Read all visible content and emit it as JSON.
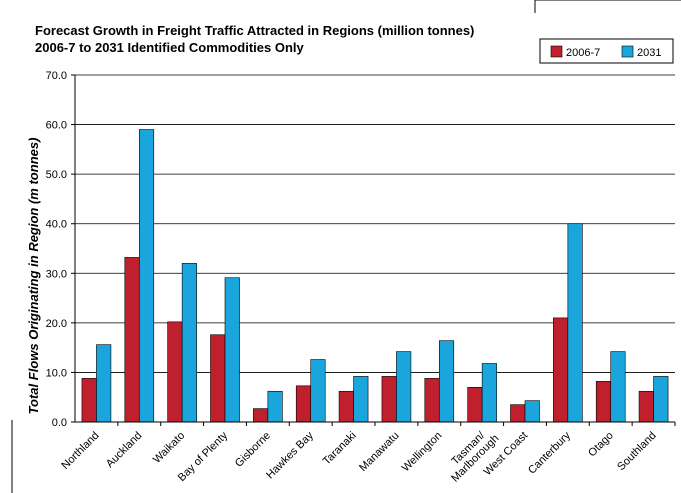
{
  "chart_data": {
    "type": "bar",
    "title": "Forecast Growth in Freight Traffic Attracted in Regions (million tonnes)",
    "subtitle": "2006-7 to 2031  Identified Commodities Only",
    "ylabel": "Total Flows Originating in Region (m tonnes)",
    "xlabel": "",
    "ylim": [
      0,
      70
    ],
    "yticks": [
      "0.0",
      "10.0",
      "20.0",
      "30.0",
      "40.0",
      "50.0",
      "60.0",
      "70.0"
    ],
    "grid": true,
    "legend_position": "top-right",
    "categories": [
      "Northland",
      "Auckland",
      "Waikato",
      "Bay of Plenty",
      "Gisborne",
      "Hawkes Bay",
      "Taranaki",
      "Manawatu",
      "Wellington",
      "Tasman/ Marlborough",
      "West Coast",
      "Canterbury",
      "Otago",
      "Southland"
    ],
    "series": [
      {
        "name": "2006-7",
        "color": "#c0202e",
        "values": [
          8.8,
          33.2,
          20.2,
          17.6,
          2.7,
          7.3,
          6.2,
          9.2,
          8.8,
          7.0,
          3.5,
          21.0,
          8.2,
          6.2
        ]
      },
      {
        "name": "2031",
        "color": "#1aa5dc",
        "values": [
          15.6,
          59.0,
          32.0,
          29.1,
          6.2,
          12.6,
          9.2,
          14.2,
          16.4,
          11.8,
          4.3,
          40.0,
          14.2,
          9.2
        ]
      }
    ]
  }
}
